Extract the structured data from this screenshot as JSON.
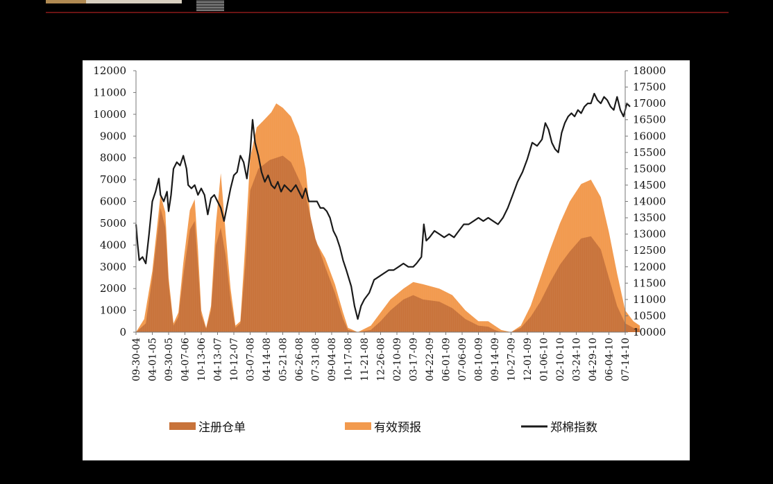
{
  "chart_data": {
    "type": "area",
    "colors": {
      "registered": "#C8733A",
      "forecast": "#F29A4E",
      "index": "#1a1a1a"
    },
    "x_tick_labels": [
      "09-30-04",
      "04-01-05",
      "09-30-05",
      "04-07-06",
      "10-13-06",
      "04-13-07",
      "10-12-07",
      "03-07-08",
      "04-14-08",
      "05-21-08",
      "06-26-08",
      "07-31-08",
      "09-04-08",
      "10-17-08",
      "11-21-08",
      "12-26-08",
      "02-10-09",
      "03-17-09",
      "04-22-09",
      "06-01-09",
      "07-06-09",
      "08-10-09",
      "09-14-09",
      "10-27-09",
      "12-01-09",
      "01-06-10",
      "02-10-10",
      "03-24-10",
      "04-29-10",
      "06-04-10",
      "07-14-10"
    ],
    "y_left": {
      "ticks": [
        "0",
        "1000",
        "2000",
        "3000",
        "4000",
        "5000",
        "6000",
        "7000",
        "8000",
        "9000",
        "10000",
        "11000",
        "12000"
      ],
      "range": [
        0,
        12000
      ]
    },
    "y_right": {
      "ticks": [
        "10000",
        "10500",
        "11000",
        "11500",
        "12000",
        "12500",
        "13000",
        "13500",
        "14000",
        "14500",
        "15000",
        "15500",
        "16000",
        "16500",
        "17000",
        "17500",
        "18000"
      ],
      "range": [
        10000,
        18000
      ]
    },
    "series": [
      {
        "name": "注册仓单",
        "axis": "left",
        "kind": "area",
        "points": [
          [
            0,
            0
          ],
          [
            0.6,
            400
          ],
          [
            1.0,
            2500
          ],
          [
            1.5,
            5700
          ],
          [
            1.8,
            4800
          ],
          [
            2.0,
            2200
          ],
          [
            2.3,
            300
          ],
          [
            2.6,
            700
          ],
          [
            2.9,
            2600
          ],
          [
            3.3,
            4700
          ],
          [
            3.6,
            5100
          ],
          [
            3.8,
            3000
          ],
          [
            4.0,
            800
          ],
          [
            4.3,
            150
          ],
          [
            4.6,
            1000
          ],
          [
            4.9,
            4000
          ],
          [
            5.2,
            4800
          ],
          [
            5.5,
            3500
          ],
          [
            5.8,
            1500
          ],
          [
            6.1,
            200
          ],
          [
            6.4,
            400
          ],
          [
            6.7,
            3000
          ],
          [
            7.0,
            6500
          ],
          [
            7.5,
            7500
          ],
          [
            8.2,
            7900
          ],
          [
            9.0,
            8100
          ],
          [
            9.5,
            7800
          ],
          [
            10.0,
            7000
          ],
          [
            10.4,
            6300
          ],
          [
            11.0,
            4300
          ],
          [
            11.6,
            3000
          ],
          [
            12.2,
            1800
          ],
          [
            12.7,
            600
          ],
          [
            13.0,
            100
          ],
          [
            13.6,
            0
          ],
          [
            14.4,
            100
          ],
          [
            15.0,
            500
          ],
          [
            15.6,
            1000
          ],
          [
            16.4,
            1500
          ],
          [
            17.0,
            1700
          ],
          [
            17.6,
            1500
          ],
          [
            18.6,
            1400
          ],
          [
            19.4,
            1100
          ],
          [
            20.2,
            600
          ],
          [
            21.0,
            300
          ],
          [
            21.6,
            250
          ],
          [
            22.0,
            100
          ],
          [
            22.4,
            0
          ],
          [
            23.0,
            0
          ],
          [
            23.6,
            200
          ],
          [
            24.2,
            700
          ],
          [
            24.8,
            1400
          ],
          [
            25.4,
            2300
          ],
          [
            26.0,
            3100
          ],
          [
            26.6,
            3700
          ],
          [
            27.3,
            4300
          ],
          [
            27.9,
            4400
          ],
          [
            28.5,
            3800
          ],
          [
            29.0,
            2500
          ],
          [
            29.5,
            1200
          ],
          [
            30.0,
            400
          ],
          [
            30.5,
            200
          ],
          [
            30.9,
            150
          ]
        ]
      },
      {
        "name": "有效预报",
        "axis": "left",
        "kind": "area",
        "points": [
          [
            0,
            0
          ],
          [
            0.5,
            600
          ],
          [
            1.0,
            2800
          ],
          [
            1.5,
            6300
          ],
          [
            1.8,
            5500
          ],
          [
            2.0,
            2500
          ],
          [
            2.3,
            400
          ],
          [
            2.6,
            900
          ],
          [
            2.9,
            3200
          ],
          [
            3.3,
            5600
          ],
          [
            3.6,
            6100
          ],
          [
            3.8,
            3800
          ],
          [
            4.0,
            1000
          ],
          [
            4.3,
            200
          ],
          [
            4.6,
            1200
          ],
          [
            4.9,
            5000
          ],
          [
            5.2,
            7300
          ],
          [
            5.5,
            4500
          ],
          [
            5.8,
            2000
          ],
          [
            6.1,
            300
          ],
          [
            6.4,
            500
          ],
          [
            6.7,
            4000
          ],
          [
            7.0,
            8000
          ],
          [
            7.4,
            9400
          ],
          [
            7.8,
            9700
          ],
          [
            8.3,
            10100
          ],
          [
            8.6,
            10500
          ],
          [
            9.0,
            10300
          ],
          [
            9.5,
            9900
          ],
          [
            10.0,
            9000
          ],
          [
            10.4,
            7500
          ],
          [
            10.7,
            5300
          ],
          [
            11.0,
            4200
          ],
          [
            11.6,
            3400
          ],
          [
            12.2,
            2200
          ],
          [
            12.7,
            900
          ],
          [
            13.0,
            200
          ],
          [
            13.6,
            0
          ],
          [
            14.4,
            300
          ],
          [
            15.0,
            900
          ],
          [
            15.6,
            1500
          ],
          [
            16.4,
            2000
          ],
          [
            17.0,
            2300
          ],
          [
            17.6,
            2200
          ],
          [
            18.6,
            2000
          ],
          [
            19.4,
            1700
          ],
          [
            20.2,
            1000
          ],
          [
            21.0,
            500
          ],
          [
            21.6,
            500
          ],
          [
            22.0,
            300
          ],
          [
            22.4,
            100
          ],
          [
            23.0,
            0
          ],
          [
            23.6,
            300
          ],
          [
            24.2,
            1200
          ],
          [
            24.8,
            2500
          ],
          [
            25.4,
            3800
          ],
          [
            26.0,
            5000
          ],
          [
            26.6,
            6000
          ],
          [
            27.3,
            6800
          ],
          [
            27.9,
            7000
          ],
          [
            28.5,
            6200
          ],
          [
            29.0,
            4600
          ],
          [
            29.5,
            2700
          ],
          [
            30.0,
            1000
          ],
          [
            30.5,
            500
          ],
          [
            30.9,
            300
          ]
        ]
      },
      {
        "name": "郑棉指数",
        "axis": "right",
        "kind": "line",
        "points": [
          [
            0,
            13300
          ],
          [
            0.1,
            12700
          ],
          [
            0.2,
            12200
          ],
          [
            0.4,
            12300
          ],
          [
            0.6,
            12100
          ],
          [
            0.8,
            13000
          ],
          [
            1.0,
            14000
          ],
          [
            1.2,
            14300
          ],
          [
            1.4,
            14700
          ],
          [
            1.5,
            14200
          ],
          [
            1.7,
            14000
          ],
          [
            1.9,
            14300
          ],
          [
            2.0,
            13700
          ],
          [
            2.15,
            14200
          ],
          [
            2.3,
            15000
          ],
          [
            2.5,
            15200
          ],
          [
            2.7,
            15100
          ],
          [
            2.9,
            15400
          ],
          [
            3.1,
            15000
          ],
          [
            3.2,
            14500
          ],
          [
            3.4,
            14400
          ],
          [
            3.6,
            14500
          ],
          [
            3.8,
            14200
          ],
          [
            4.0,
            14400
          ],
          [
            4.2,
            14200
          ],
          [
            4.4,
            13600
          ],
          [
            4.6,
            14100
          ],
          [
            4.8,
            14200
          ],
          [
            5.0,
            14000
          ],
          [
            5.2,
            13800
          ],
          [
            5.4,
            13400
          ],
          [
            5.6,
            13900
          ],
          [
            5.8,
            14400
          ],
          [
            6.0,
            14800
          ],
          [
            6.2,
            14900
          ],
          [
            6.4,
            15400
          ],
          [
            6.6,
            15200
          ],
          [
            6.8,
            14700
          ],
          [
            7.0,
            15500
          ],
          [
            7.15,
            16500
          ],
          [
            7.3,
            15800
          ],
          [
            7.5,
            15400
          ],
          [
            7.7,
            14900
          ],
          [
            7.9,
            14600
          ],
          [
            8.1,
            14800
          ],
          [
            8.3,
            14500
          ],
          [
            8.5,
            14400
          ],
          [
            8.7,
            14600
          ],
          [
            8.9,
            14300
          ],
          [
            9.1,
            14500
          ],
          [
            9.3,
            14400
          ],
          [
            9.5,
            14300
          ],
          [
            9.8,
            14500
          ],
          [
            10.0,
            14300
          ],
          [
            10.2,
            14100
          ],
          [
            10.4,
            14400
          ],
          [
            10.6,
            14000
          ],
          [
            10.9,
            14000
          ],
          [
            11.1,
            14000
          ],
          [
            11.3,
            13800
          ],
          [
            11.5,
            13800
          ],
          [
            11.7,
            13700
          ],
          [
            11.9,
            13500
          ],
          [
            12.1,
            13100
          ],
          [
            12.3,
            12900
          ],
          [
            12.5,
            12600
          ],
          [
            12.7,
            12200
          ],
          [
            12.9,
            11900
          ],
          [
            13.2,
            11400
          ],
          [
            13.4,
            10800
          ],
          [
            13.6,
            10400
          ],
          [
            13.8,
            10800
          ],
          [
            14.0,
            11000
          ],
          [
            14.3,
            11200
          ],
          [
            14.6,
            11600
          ],
          [
            14.9,
            11700
          ],
          [
            15.2,
            11800
          ],
          [
            15.5,
            11900
          ],
          [
            15.8,
            11900
          ],
          [
            16.1,
            12000
          ],
          [
            16.4,
            12100
          ],
          [
            16.7,
            12000
          ],
          [
            17.0,
            12000
          ],
          [
            17.2,
            12100
          ],
          [
            17.5,
            12300
          ],
          [
            17.65,
            13300
          ],
          [
            17.8,
            12800
          ],
          [
            18.0,
            12900
          ],
          [
            18.3,
            13100
          ],
          [
            18.6,
            13000
          ],
          [
            18.9,
            12900
          ],
          [
            19.2,
            13000
          ],
          [
            19.5,
            12900
          ],
          [
            19.8,
            13100
          ],
          [
            20.1,
            13300
          ],
          [
            20.4,
            13300
          ],
          [
            20.7,
            13400
          ],
          [
            21.0,
            13500
          ],
          [
            21.3,
            13400
          ],
          [
            21.6,
            13500
          ],
          [
            21.9,
            13400
          ],
          [
            22.2,
            13300
          ],
          [
            22.5,
            13500
          ],
          [
            22.8,
            13800
          ],
          [
            23.1,
            14200
          ],
          [
            23.4,
            14600
          ],
          [
            23.7,
            14900
          ],
          [
            24.0,
            15300
          ],
          [
            24.3,
            15800
          ],
          [
            24.6,
            15700
          ],
          [
            24.9,
            15900
          ],
          [
            25.1,
            16400
          ],
          [
            25.3,
            16200
          ],
          [
            25.5,
            15800
          ],
          [
            25.7,
            15600
          ],
          [
            25.9,
            15500
          ],
          [
            26.1,
            16100
          ],
          [
            26.3,
            16400
          ],
          [
            26.5,
            16600
          ],
          [
            26.7,
            16700
          ],
          [
            26.9,
            16600
          ],
          [
            27.1,
            16800
          ],
          [
            27.3,
            16700
          ],
          [
            27.5,
            16900
          ],
          [
            27.7,
            17000
          ],
          [
            27.9,
            17000
          ],
          [
            28.1,
            17300
          ],
          [
            28.3,
            17100
          ],
          [
            28.5,
            17000
          ],
          [
            28.7,
            17200
          ],
          [
            28.9,
            17100
          ],
          [
            29.1,
            16900
          ],
          [
            29.3,
            16800
          ],
          [
            29.5,
            17200
          ],
          [
            29.7,
            16800
          ],
          [
            29.9,
            16600
          ],
          [
            30.1,
            17000
          ],
          [
            30.3,
            16900
          ]
        ]
      }
    ],
    "legend": {
      "position": "bottom",
      "entries": [
        "注册仓单",
        "有效预报",
        "郑棉指数"
      ]
    }
  }
}
